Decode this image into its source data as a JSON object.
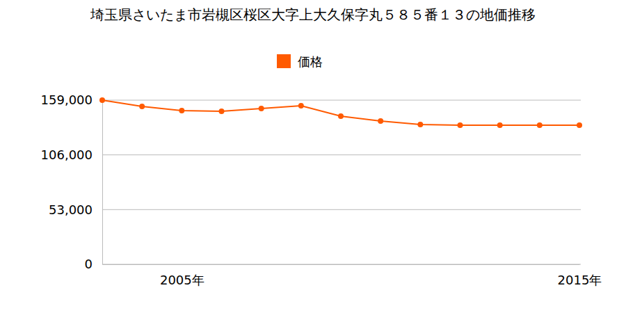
{
  "chart_data": {
    "type": "line",
    "title": "埼玉県さいたま市岩槻区桜区大字上大久保字丸５８５番１３の地価推移",
    "categories": [
      null,
      null,
      "2005年",
      null,
      null,
      null,
      null,
      null,
      null,
      null,
      null,
      null,
      "2015年"
    ],
    "series": [
      {
        "name": "価格",
        "color": "#ff5a00",
        "marker": "circle",
        "values": [
          159000,
          152900,
          148900,
          148200,
          150900,
          153600,
          143500,
          138800,
          135400,
          134700,
          134700,
          134700,
          134700
        ]
      }
    ],
    "ylim": [
      0,
      159000
    ],
    "yticks": [
      0,
      {
        "value": 53000,
        "label": "53,000"
      },
      {
        "value": 106000,
        "label": "106,000"
      },
      {
        "value": 159000,
        "label": "159,000"
      }
    ],
    "grid": true,
    "legend": "top"
  }
}
